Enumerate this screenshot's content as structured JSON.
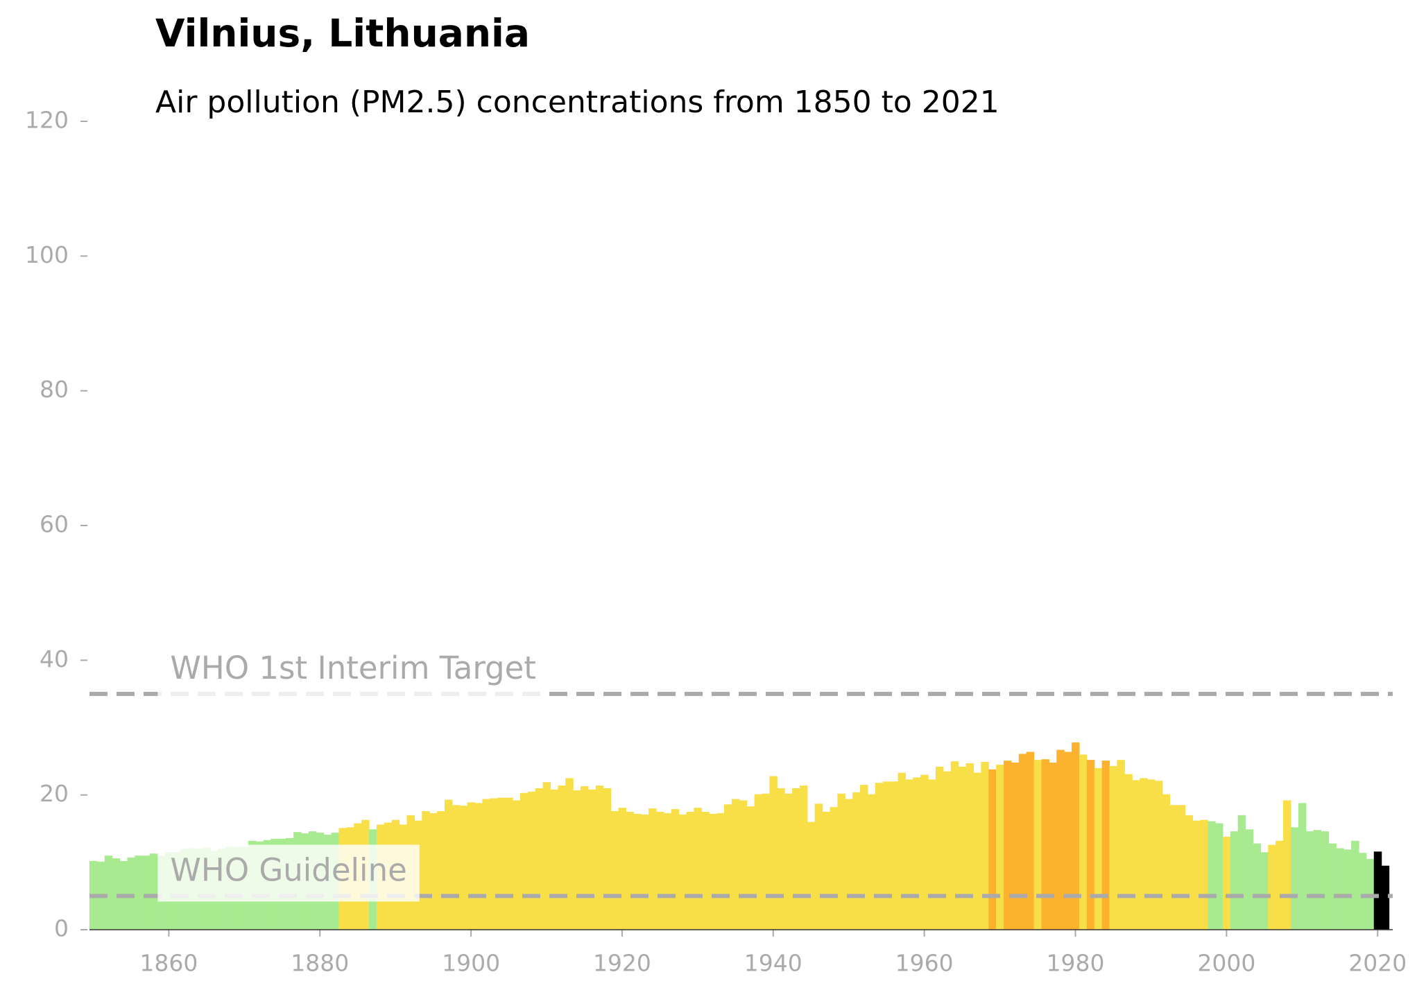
{
  "chart_data": {
    "type": "bar",
    "title": "Vilnius, Lithuania",
    "subtitle": "Air pollution (PM2.5) concentrations from 1850 to 2021",
    "x": [
      1850,
      1851,
      1852,
      1853,
      1854,
      1855,
      1856,
      1857,
      1858,
      1859,
      1860,
      1861,
      1862,
      1863,
      1864,
      1865,
      1866,
      1867,
      1868,
      1869,
      1870,
      1871,
      1872,
      1873,
      1874,
      1875,
      1876,
      1877,
      1878,
      1879,
      1880,
      1881,
      1882,
      1883,
      1884,
      1885,
      1886,
      1887,
      1888,
      1889,
      1890,
      1891,
      1892,
      1893,
      1894,
      1895,
      1896,
      1897,
      1898,
      1899,
      1900,
      1901,
      1902,
      1903,
      1904,
      1905,
      1906,
      1907,
      1908,
      1909,
      1910,
      1911,
      1912,
      1913,
      1914,
      1915,
      1916,
      1917,
      1918,
      1919,
      1920,
      1921,
      1922,
      1923,
      1924,
      1925,
      1926,
      1927,
      1928,
      1929,
      1930,
      1931,
      1932,
      1933,
      1934,
      1935,
      1936,
      1937,
      1938,
      1939,
      1940,
      1941,
      1942,
      1943,
      1944,
      1945,
      1946,
      1947,
      1948,
      1949,
      1950,
      1951,
      1952,
      1953,
      1954,
      1955,
      1956,
      1957,
      1958,
      1959,
      1960,
      1961,
      1962,
      1963,
      1964,
      1965,
      1966,
      1967,
      1968,
      1969,
      1970,
      1971,
      1972,
      1973,
      1974,
      1975,
      1976,
      1977,
      1978,
      1979,
      1980,
      1981,
      1982,
      1983,
      1984,
      1985,
      1986,
      1987,
      1988,
      1989,
      1990,
      1991,
      1992,
      1993,
      1994,
      1995,
      1996,
      1997,
      1998,
      1999,
      2000,
      2001,
      2002,
      2003,
      2004,
      2005,
      2006,
      2007,
      2008,
      2009,
      2010,
      2011,
      2012,
      2013,
      2014,
      2015,
      2016,
      2017,
      2018,
      2019,
      2020,
      2021
    ],
    "values": [
      10.2,
      10.1,
      11,
      10.6,
      10.2,
      10.7,
      11,
      11,
      11.3,
      11,
      11.5,
      11.5,
      12,
      12.1,
      12,
      12.2,
      11.7,
      12,
      12.3,
      12.3,
      12.3,
      13.2,
      13.1,
      13.3,
      13.5,
      13.5,
      13.6,
      14.5,
      14.3,
      14.6,
      14.4,
      14.1,
      14.4,
      15.1,
      15.2,
      15.8,
      16.3,
      14.9,
      15.6,
      15.9,
      16.3,
      15.6,
      17,
      16.2,
      17.6,
      17.3,
      17.6,
      19.3,
      18.5,
      18.4,
      18.9,
      18.8,
      19.4,
      19.5,
      19.6,
      19.6,
      19.2,
      20.3,
      20.5,
      21,
      21.9,
      20.8,
      21.4,
      22.5,
      20.7,
      21.3,
      20.8,
      21.4,
      21,
      17.6,
      18.1,
      17.5,
      17.2,
      17.1,
      18,
      17.5,
      17.3,
      17.9,
      17.1,
      17.5,
      18.1,
      17.5,
      17.2,
      17.3,
      18.6,
      19.4,
      19.2,
      18.3,
      20.1,
      20.2,
      22.8,
      21,
      20.2,
      21,
      21.4,
      16,
      18.7,
      17.5,
      18.2,
      20.2,
      19.4,
      20.4,
      21.5,
      20.1,
      21.8,
      22,
      22,
      23.3,
      22.3,
      22.6,
      23,
      22.3,
      24.2,
      23.5,
      25,
      24.2,
      24.7,
      23.3,
      24.9,
      23.8,
      24.5,
      25.1,
      24.8,
      26.1,
      26.4,
      25.2,
      25.3,
      24.8,
      26.7,
      26.4,
      27.8,
      26,
      25.2,
      24,
      25.1,
      24.3,
      25.2,
      23.1,
      22.2,
      22.5,
      22.3,
      22.1,
      20.1,
      18.5,
      18.5,
      17,
      16.2,
      16.3,
      16.1,
      15.8,
      13.8,
      14.6,
      17,
      14.9,
      12.8,
      11.5,
      12.6,
      13.2,
      19.2,
      15.2,
      18.8,
      14.6,
      14.8,
      14.6,
      12.8,
      12.1,
      11.9,
      13.2,
      11.4,
      10.5,
      11.6,
      9.5
    ],
    "colors": [
      "#a8ea8f",
      "#a8ea8f",
      "#a8ea8f",
      "#a8ea8f",
      "#a8ea8f",
      "#a8ea8f",
      "#a8ea8f",
      "#a8ea8f",
      "#a8ea8f",
      "#a8ea8f",
      "#a8ea8f",
      "#a8ea8f",
      "#a8ea8f",
      "#a8ea8f",
      "#a8ea8f",
      "#a8ea8f",
      "#a8ea8f",
      "#a8ea8f",
      "#a8ea8f",
      "#a8ea8f",
      "#a8ea8f",
      "#a8ea8f",
      "#a8ea8f",
      "#a8ea8f",
      "#a8ea8f",
      "#a8ea8f",
      "#a8ea8f",
      "#a8ea8f",
      "#a8ea8f",
      "#a8ea8f",
      "#a8ea8f",
      "#a8ea8f",
      "#a8ea8f",
      "#f8df48",
      "#f8df48",
      "#f8df48",
      "#f8df48",
      "#a8ea8f",
      "#f8df48",
      "#f8df48",
      "#f8df48",
      "#f8df48",
      "#f8df48",
      "#f8df48",
      "#f8df48",
      "#f8df48",
      "#f8df48",
      "#f8df48",
      "#f8df48",
      "#f8df48",
      "#f8df48",
      "#f8df48",
      "#f8df48",
      "#f8df48",
      "#f8df48",
      "#f8df48",
      "#f8df48",
      "#f8df48",
      "#f8df48",
      "#f8df48",
      "#f8df48",
      "#f8df48",
      "#f8df48",
      "#f8df48",
      "#f8df48",
      "#f8df48",
      "#f8df48",
      "#f8df48",
      "#f8df48",
      "#f8df48",
      "#f8df48",
      "#f8df48",
      "#f8df48",
      "#f8df48",
      "#f8df48",
      "#f8df48",
      "#f8df48",
      "#f8df48",
      "#f8df48",
      "#f8df48",
      "#f8df48",
      "#f8df48",
      "#f8df48",
      "#f8df48",
      "#f8df48",
      "#f8df48",
      "#f8df48",
      "#f8df48",
      "#f8df48",
      "#f8df48",
      "#f8df48",
      "#f8df48",
      "#f8df48",
      "#f8df48",
      "#f8df48",
      "#f8df48",
      "#f8df48",
      "#f8df48",
      "#f8df48",
      "#f8df48",
      "#f8df48",
      "#f8df48",
      "#f8df48",
      "#f8df48",
      "#f8df48",
      "#f8df48",
      "#f8df48",
      "#f8df48",
      "#f8df48",
      "#f8df48",
      "#f8df48",
      "#f8df48",
      "#f8df48",
      "#f8df48",
      "#f8df48",
      "#f8df48",
      "#f8df48",
      "#f8df48",
      "#f8df48",
      "#fcb22e",
      "#f8df48",
      "#fcb22e",
      "#fcb22e",
      "#fcb22e",
      "#fcb22e",
      "#f8df48",
      "#fcb22e",
      "#fcb22e",
      "#fcb22e",
      "#fcb22e",
      "#fcb22e",
      "#f8df48",
      "#fcb22e",
      "#f8df48",
      "#fcb22e",
      "#f8df48",
      "#f8df48",
      "#f8df48",
      "#f8df48",
      "#f8df48",
      "#f8df48",
      "#f8df48",
      "#f8df48",
      "#f8df48",
      "#f8df48",
      "#f8df48",
      "#f8df48",
      "#f8df48",
      "#a8ea8f",
      "#a8ea8f",
      "#f8df48",
      "#a8ea8f",
      "#a8ea8f",
      "#a8ea8f",
      "#a8ea8f",
      "#a8ea8f",
      "#f8df48",
      "#f8df48",
      "#f8df48",
      "#a8ea8f",
      "#a8ea8f",
      "#a8ea8f",
      "#a8ea8f",
      "#a8ea8f",
      "#a8ea8f",
      "#a8ea8f",
      "#a8ea8f",
      "#a8ea8f",
      "#a8ea8f",
      "#a8ea8f"
    ],
    "xlim": [
      1849.5,
      2022
    ],
    "xticks": [
      1860,
      1880,
      1900,
      1920,
      1940,
      1960,
      1980,
      2000,
      2020
    ],
    "ylim": [
      0,
      120
    ],
    "yticks": [
      0,
      20,
      40,
      60,
      80,
      100,
      120
    ],
    "reference_lines": [
      {
        "value": 35,
        "label": "WHO 1st Interim Target"
      },
      {
        "value": 5,
        "label": "WHO Guideline"
      }
    ],
    "reference_color": "#aaaaaa",
    "grid": false
  }
}
